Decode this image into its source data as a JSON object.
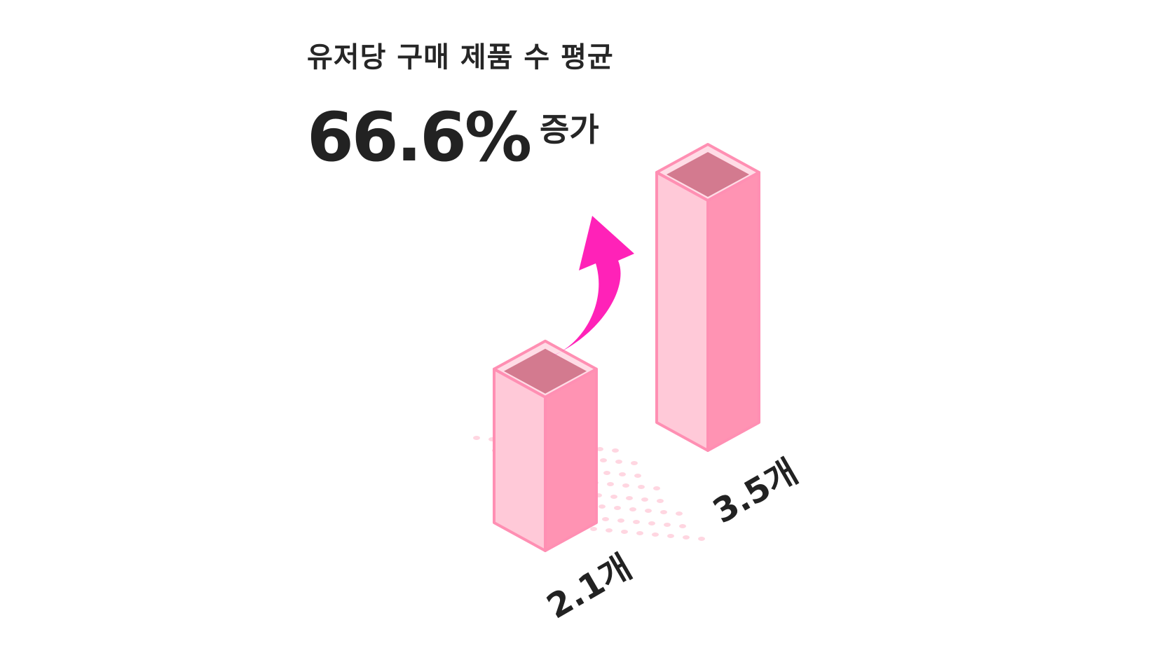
{
  "subtitle": "유저당 구매 제품 수 평균",
  "headline": {
    "value": "66.6%",
    "suffix": "증가"
  },
  "colors": {
    "bar_front": "#ffc9d8",
    "bar_side": "#ff93b3",
    "bar_outline": "#ff8fb3",
    "bar_top_inner": "#d37a8f",
    "arrow": "#ff22b8",
    "dots": "#ffd6e1",
    "text": "#222222"
  },
  "chart_data": {
    "type": "bar",
    "categories": [
      "",
      ""
    ],
    "values": [
      2.1,
      3.5
    ],
    "data_labels": [
      "2.1개",
      "3.5개"
    ],
    "change": "66.6% 증가",
    "title": "유저당 구매 제품 수 평균",
    "xlabel": "",
    "ylabel": "",
    "style": "isometric 3D columns with upward arrow"
  }
}
